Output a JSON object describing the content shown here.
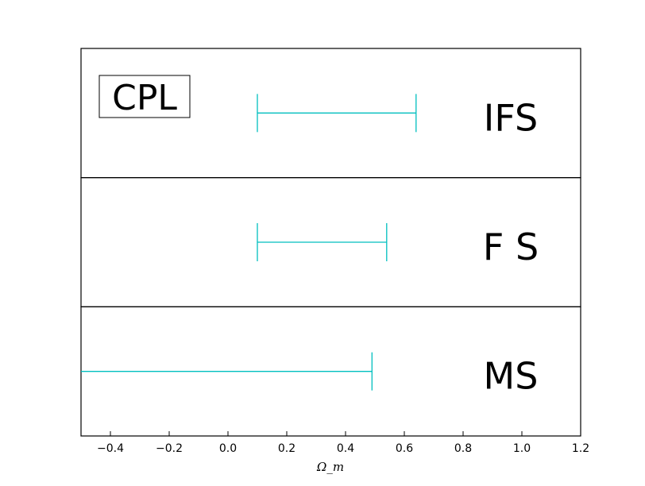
{
  "chart_data": {
    "type": "errorbar",
    "xlabel": "Ω_m",
    "xlim": [
      -0.5,
      1.2
    ],
    "x_ticks": [
      "−0.4",
      "−0.2",
      "0.0",
      "0.2",
      "0.4",
      "0.6",
      "0.8",
      "1.0",
      "1.2"
    ],
    "x_tick_values": [
      -0.4,
      -0.2,
      0.0,
      0.2,
      0.4,
      0.6,
      0.8,
      1.0,
      1.2
    ],
    "legend": "CPL",
    "legend_position": "top-left",
    "bar_color": "#00bfbf",
    "panels": [
      {
        "label": "IFS",
        "low": 0.1,
        "high": 0.64,
        "left_cap": true,
        "right_cap": true
      },
      {
        "label": "F S",
        "low": 0.1,
        "high": 0.54,
        "left_cap": true,
        "right_cap": true
      },
      {
        "label": "MS",
        "low": -0.5,
        "high": 0.49,
        "left_cap": false,
        "right_cap": true
      }
    ]
  }
}
